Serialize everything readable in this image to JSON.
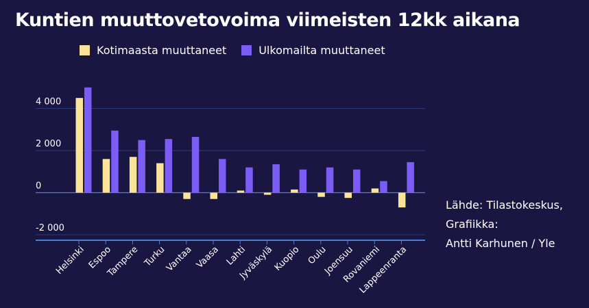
{
  "title": "Kuntien muuttovetovoima viimeisten 12kk aikana",
  "source_lines": [
    "Lähde: Tilastokeskus,",
    "Grafiikka:",
    "Antti Karhunen / Yle"
  ],
  "colors": {
    "background": "#1a1642",
    "series1": "#fbe39a",
    "series2": "#7b5cf5",
    "axis": "#4a7fd6",
    "grid": "#2e3a78"
  },
  "chart_data": {
    "type": "bar",
    "title": "Kuntien muuttovetovoima viimeisten 12kk aikana",
    "xlabel": "",
    "ylabel": "",
    "ylim": [
      -2000,
      5000
    ],
    "yticks": [
      4000,
      2000,
      0,
      -2000
    ],
    "ytick_labels": [
      "4 000",
      "2 000",
      "0",
      "-2 000"
    ],
    "legend_position": "top",
    "grid": true,
    "categories": [
      "Helsinki",
      "Espoo",
      "Tampere",
      "Turku",
      "Vantaa",
      "Vaasa",
      "Lahti",
      "Jyväskylä",
      "Kuopio",
      "Oulu",
      "Joensuu",
      "Rovaniemi",
      "Lappeenranta"
    ],
    "series": [
      {
        "name": "Kotimaasta muuttaneet",
        "values": [
          4500,
          1600,
          1700,
          1400,
          -300,
          -300,
          100,
          -100,
          150,
          -200,
          -250,
          200,
          -700
        ]
      },
      {
        "name": "Ulkomailta muuttaneet",
        "values": [
          5000,
          2950,
          2500,
          2550,
          2650,
          1600,
          1200,
          1350,
          1100,
          1200,
          1100,
          550,
          1450
        ]
      }
    ]
  }
}
